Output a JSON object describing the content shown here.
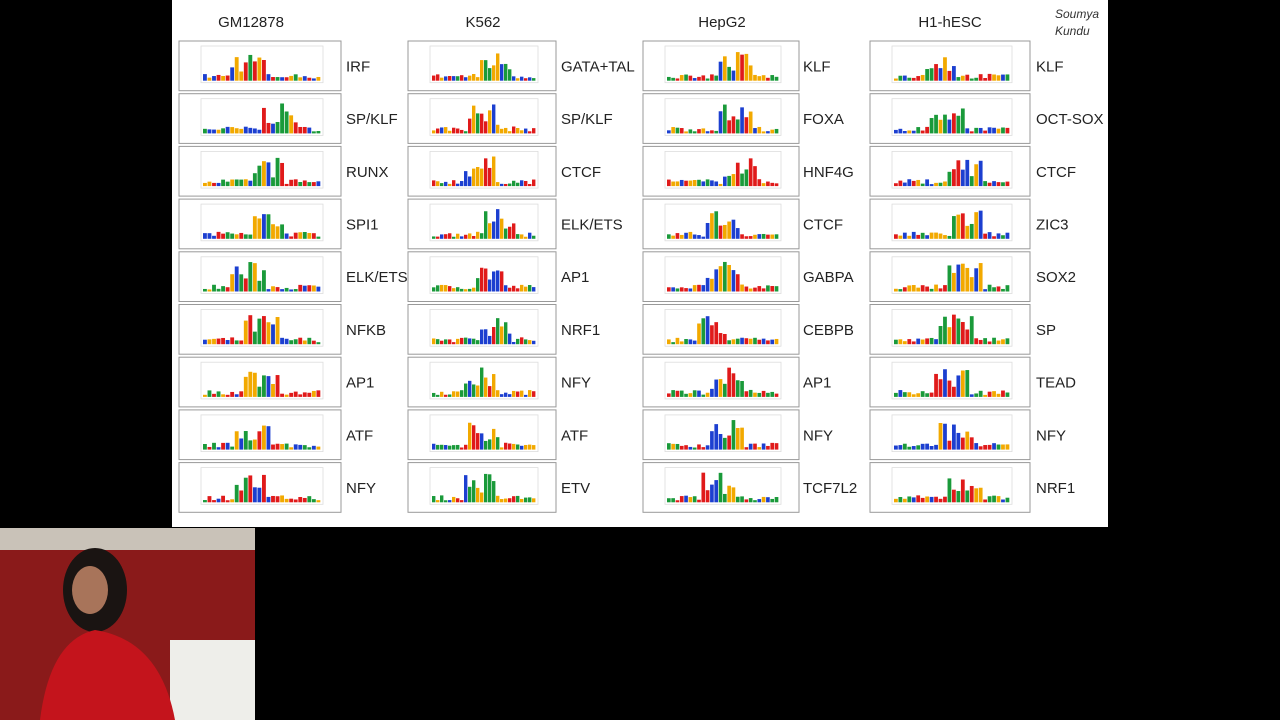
{
  "slide": {
    "author": [
      "Soumya",
      "Kundu"
    ],
    "columns": [
      {
        "title": "GM12878",
        "motifs": [
          "IRF",
          "SP/KLF",
          "RUNX",
          "SPI1",
          "ELK/ETS",
          "NFKB",
          "AP1",
          "ATF",
          "NFY"
        ]
      },
      {
        "title": "K562",
        "motifs": [
          "GATA+TAL",
          "SP/KLF",
          "CTCF",
          "ELK/ETS",
          "AP1",
          "NRF1",
          "NFY",
          "ATF",
          "ETV"
        ]
      },
      {
        "title": "HepG2",
        "motifs": [
          "KLF",
          "FOXA",
          "HNF4G",
          "CTCF",
          "GABPA",
          "CEBPB",
          "AP1",
          "NFY",
          "TCF7L2"
        ]
      },
      {
        "title": "H1-hESC",
        "motifs": [
          "KLF",
          "OCT-SOX",
          "CTCF",
          "ZIC3",
          "SOX2",
          "SP",
          "TEAD",
          "NFY",
          "NRF1"
        ]
      }
    ]
  }
}
